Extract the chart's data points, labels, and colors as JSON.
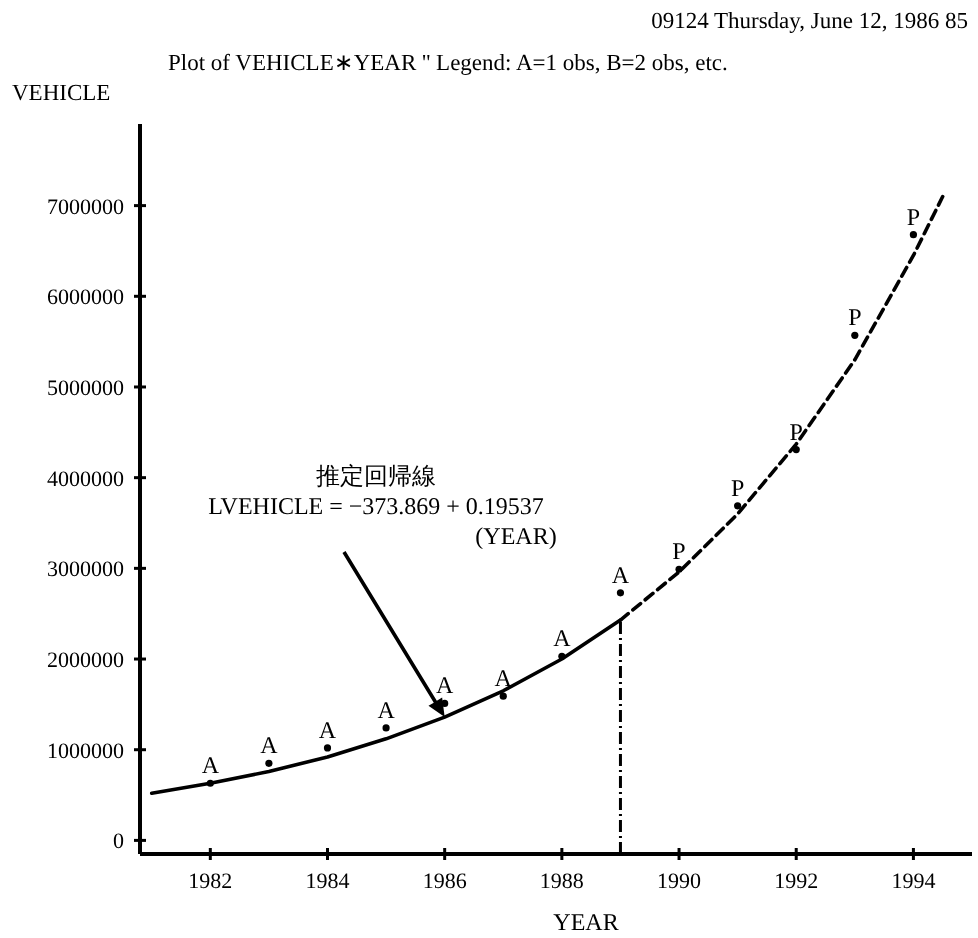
{
  "chart_data": {
    "type": "scatter",
    "subtitle": "09124 Thursday, June 12, 1986 85",
    "title": "Plot of VEHICLE∗YEAR '' Legend:   A=1 obs,   B=2 obs, etc.",
    "ylabel": "VEHICLE",
    "xlabel": "YEAR",
    "xlim": [
      1980.8,
      1995
    ],
    "ylim": [
      -150000,
      7900000
    ],
    "xticks": [
      1982,
      1984,
      1986,
      1988,
      1990,
      1992,
      1994
    ],
    "yticks": [
      0,
      1000000,
      2000000,
      3000000,
      4000000,
      5000000,
      6000000,
      7000000
    ],
    "grid": false,
    "series": [
      {
        "name": "A",
        "type": "scatter",
        "color": "#000000",
        "x": [
          1982,
          1983,
          1984,
          1985,
          1986,
          1987,
          1988,
          1989
        ],
        "values": [
          630000,
          850000,
          1020000,
          1240000,
          1510000,
          1590000,
          2030000,
          2730000
        ]
      },
      {
        "name": "P",
        "type": "scatter",
        "color": "#000000",
        "x": [
          1990,
          1991,
          1992,
          1993,
          1994
        ],
        "values": [
          2990000,
          3690000,
          4310000,
          5570000,
          6680000
        ]
      },
      {
        "type": "line",
        "line_style": "solid",
        "color": "#000000",
        "x": [
          1981,
          1982,
          1983,
          1984,
          1985,
          1986,
          1987,
          1988,
          1989
        ],
        "values": [
          520000,
          630000,
          760000,
          920000,
          1120000,
          1360000,
          1650000,
          2000000,
          2430000
        ]
      },
      {
        "type": "line",
        "line_style": "dashed",
        "color": "#000000",
        "x": [
          1989,
          1990,
          1991,
          1992,
          1993,
          1994,
          1994.5
        ],
        "values": [
          2430000,
          2960000,
          3600000,
          4370000,
          5300000,
          6450000,
          7100000
        ]
      }
    ],
    "ref_lines": [
      {
        "axis": "x",
        "value": 1989,
        "line_style": "dashdot",
        "color": "#000000"
      }
    ],
    "annotations": [
      "推定回帰線\nLVEHICLE = −373.869 + 0.19537\n(YEAR)"
    ]
  }
}
